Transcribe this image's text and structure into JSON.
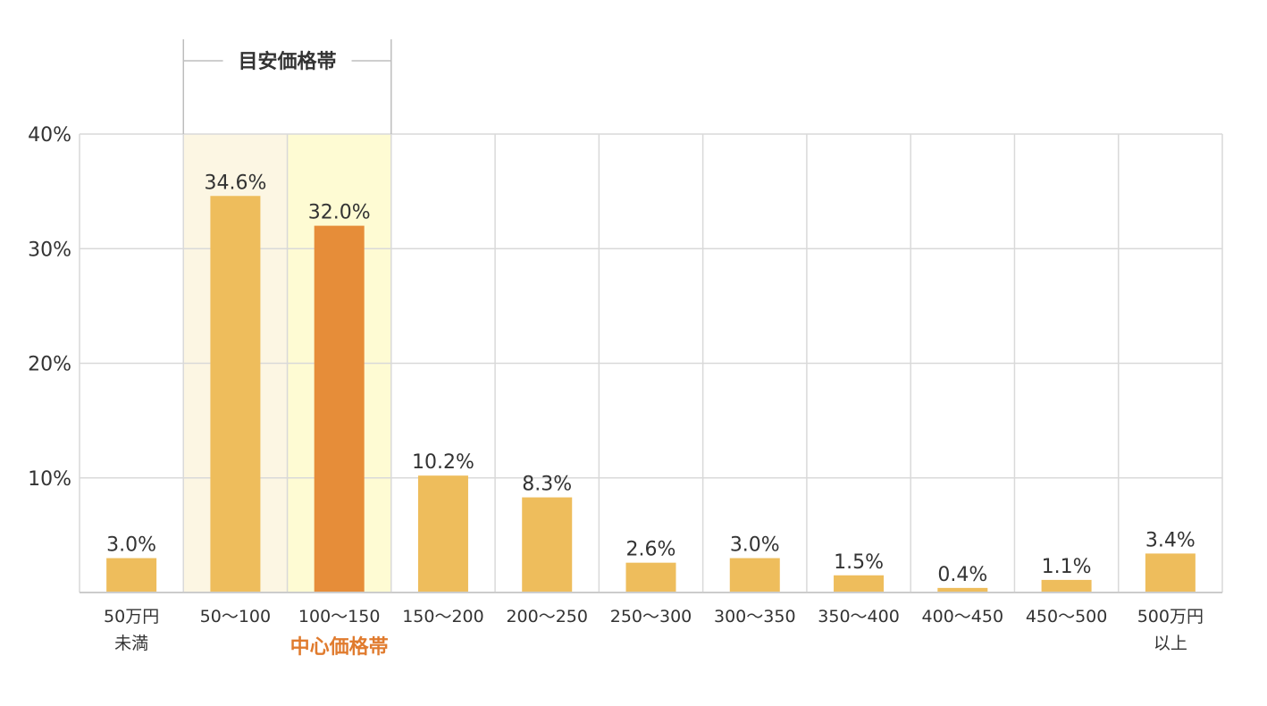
{
  "chart_data": {
    "type": "bar",
    "categories": [
      [
        "50万円",
        "未満"
      ],
      [
        "50〜100"
      ],
      [
        "100〜150"
      ],
      [
        "150〜200"
      ],
      [
        "200〜250"
      ],
      [
        "250〜300"
      ],
      [
        "300〜350"
      ],
      [
        "350〜400"
      ],
      [
        "400〜450"
      ],
      [
        "450〜500"
      ],
      [
        "500万円",
        "以上"
      ]
    ],
    "values": [
      3.0,
      34.6,
      32.0,
      10.2,
      8.3,
      2.6,
      3.0,
      1.5,
      0.4,
      1.1,
      3.4
    ],
    "value_labels": [
      "3.0%",
      "34.6%",
      "32.0%",
      "10.2%",
      "8.3%",
      "2.6%",
      "3.0%",
      "1.5%",
      "0.4%",
      "1.1%",
      "3.4%"
    ],
    "ylim": [
      0,
      40
    ],
    "yticks": [
      10,
      20,
      30,
      40
    ],
    "ytick_labels": [
      "10%",
      "20%",
      "30%",
      "40%"
    ],
    "grid": true,
    "guide_range": {
      "label": "目安価格帯",
      "categories": [
        1,
        2
      ]
    },
    "center_range": {
      "label": "中心価格帯",
      "category": 2
    },
    "colors": {
      "bar": "#EEBD5C",
      "bar_highlight": "#E68D39",
      "guide_shade": "#FCF6E3",
      "center_shade": "#FEFBD3",
      "grid": "#D9D9D9",
      "axis": "#CCCCCC",
      "bracket": "#BDBDBD",
      "text": "#333333",
      "center_label": "#E07B2E"
    }
  }
}
